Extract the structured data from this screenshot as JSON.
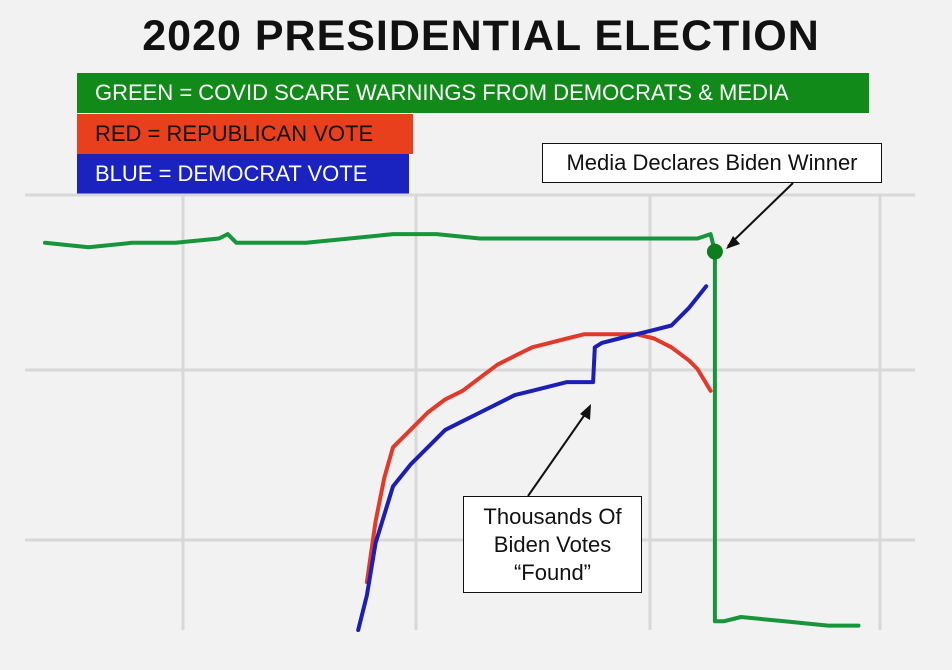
{
  "title": "2020 PRESIDENTIAL ELECTION",
  "legend": {
    "green": "GREEN = COVID SCARE WARNINGS FROM DEMOCRATS & MEDIA",
    "red": "RED = REPUBLICAN VOTE",
    "blue": "BLUE = DEMOCRAT VOTE"
  },
  "annotations": {
    "media": "Media Declares Biden Winner",
    "found": "Thousands Of\nBiden Votes\n“Found”"
  },
  "colors": {
    "green": "#16953a",
    "red": "#e23a2a",
    "blue": "#1c1fb4",
    "marker": "#0f7d1e",
    "grid": "#d8d8d8"
  },
  "chart_data": {
    "type": "line",
    "title": "2020 PRESIDENTIAL ELECTION",
    "xlabel": "",
    "ylabel": "",
    "xlim": [
      0,
      100
    ],
    "ylim": [
      0,
      100
    ],
    "grid": true,
    "series": [
      {
        "name": "GREEN = COVID SCARE WARNINGS FROM DEMOCRATS & MEDIA",
        "key": "green",
        "x": [
          0,
          5,
          10,
          15,
          20,
          21,
          22,
          25,
          30,
          35,
          40,
          45,
          50,
          55,
          60,
          65,
          70,
          75,
          76.5,
          77,
          77,
          78,
          80,
          85,
          90,
          93.5
        ],
        "y": [
          89,
          88,
          89,
          89,
          90,
          91,
          89,
          89,
          89,
          90,
          91,
          91,
          90,
          90,
          90,
          90,
          90,
          90,
          91,
          87,
          2,
          2,
          3,
          2,
          1,
          1
        ]
      },
      {
        "name": "RED = REPUBLICAN VOTE",
        "key": "red",
        "x": [
          37,
          38,
          39,
          40,
          42,
          44,
          46,
          48,
          50,
          52,
          54,
          56,
          58,
          60,
          62,
          64,
          66,
          68,
          70,
          72,
          74,
          75,
          76.5
        ],
        "y": [
          11,
          25,
          35,
          42,
          46,
          50,
          53,
          55,
          58,
          61,
          63,
          65,
          66,
          67,
          68,
          68,
          68,
          68,
          67,
          65,
          62,
          60,
          55
        ]
      },
      {
        "name": "BLUE = DEMOCRAT VOTE",
        "key": "blue",
        "x": [
          36,
          37,
          38,
          40,
          42,
          44,
          46,
          48,
          50,
          52,
          54,
          56,
          58,
          60,
          62,
          63,
          63.2,
          64,
          66,
          68,
          70,
          72,
          74,
          76
        ],
        "y": [
          0,
          8,
          20,
          33,
          38,
          42,
          46,
          48,
          50,
          52,
          54,
          55,
          56,
          57,
          57,
          57,
          65,
          66,
          67,
          68,
          69,
          70,
          74,
          79
        ]
      }
    ]
  }
}
